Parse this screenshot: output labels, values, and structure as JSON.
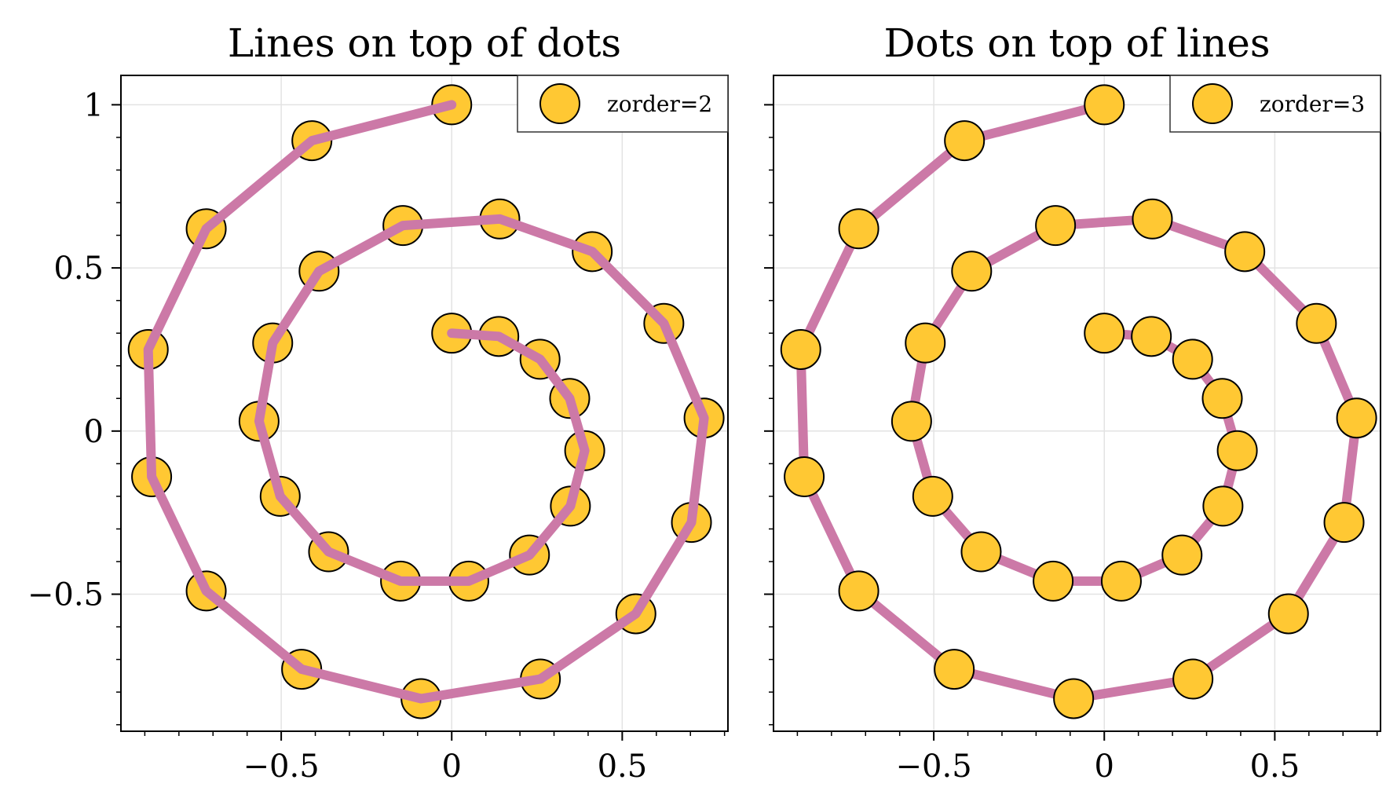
{
  "chart_data": [
    {
      "type": "scatter",
      "title": "Lines on top of dots",
      "xlim": [
        -0.97,
        0.81
      ],
      "ylim": [
        -0.92,
        1.09
      ],
      "xticks": [
        -0.5,
        0,
        0.5
      ],
      "xtick_labels": [
        "−0.5",
        "0",
        "0.5"
      ],
      "yticks": [
        -0.5,
        0,
        0.5,
        1
      ],
      "ytick_labels": [
        "−0.5",
        "0",
        "0.5",
        "1"
      ],
      "grid": true,
      "legend": {
        "position": "top-right",
        "entries": [
          "zorder=2"
        ]
      },
      "draw_order": "dots-below-line",
      "series": [
        {
          "name": "zorder=2",
          "marker_color": "#ffc833",
          "marker_edge": "#000000",
          "line_color": "#cc79a7",
          "x": [
            0.0,
            0.138,
            0.259,
            0.346,
            0.39,
            0.348,
            0.228,
            0.05,
            -0.15,
            -0.361,
            -0.503,
            -0.565,
            -0.525,
            -0.389,
            -0.143,
            0.141,
            0.412,
            0.622,
            0.74,
            0.703,
            0.54,
            0.26,
            -0.09,
            -0.44,
            -0.72,
            -0.88,
            -0.89,
            -0.72,
            -0.41,
            0.0
          ],
          "y": [
            0.3,
            0.29,
            0.22,
            0.1,
            -0.06,
            -0.23,
            -0.38,
            -0.46,
            -0.46,
            -0.37,
            -0.2,
            0.03,
            0.27,
            0.49,
            0.63,
            0.65,
            0.55,
            0.33,
            0.04,
            -0.28,
            -0.56,
            -0.76,
            -0.82,
            -0.73,
            -0.49,
            -0.14,
            0.25,
            0.62,
            0.89,
            1.0
          ]
        }
      ]
    },
    {
      "type": "scatter",
      "title": "Dots on top of lines",
      "xlim": [
        -0.97,
        0.81
      ],
      "ylim": [
        -0.92,
        1.09
      ],
      "xticks": [
        -0.5,
        0,
        0.5
      ],
      "xtick_labels": [
        "−0.5",
        "0",
        "0.5"
      ],
      "yticks": [
        -0.5,
        0,
        0.5,
        1
      ],
      "ytick_labels": [
        "",
        "",
        "",
        ""
      ],
      "grid": true,
      "legend": {
        "position": "top-right",
        "entries": [
          "zorder=3"
        ]
      },
      "draw_order": "dots-above-line",
      "series": [
        {
          "name": "zorder=3",
          "marker_color": "#ffc833",
          "marker_edge": "#000000",
          "line_color": "#cc79a7",
          "x": [
            0.0,
            0.138,
            0.259,
            0.346,
            0.39,
            0.348,
            0.228,
            0.05,
            -0.15,
            -0.361,
            -0.503,
            -0.565,
            -0.525,
            -0.389,
            -0.143,
            0.141,
            0.412,
            0.622,
            0.74,
            0.703,
            0.54,
            0.26,
            -0.09,
            -0.44,
            -0.72,
            -0.88,
            -0.89,
            -0.72,
            -0.41,
            0.0
          ],
          "y": [
            0.3,
            0.29,
            0.22,
            0.1,
            -0.06,
            -0.23,
            -0.38,
            -0.46,
            -0.46,
            -0.37,
            -0.2,
            0.03,
            0.27,
            0.49,
            0.63,
            0.65,
            0.55,
            0.33,
            0.04,
            -0.28,
            -0.56,
            -0.76,
            -0.82,
            -0.73,
            -0.49,
            -0.14,
            0.25,
            0.62,
            0.89,
            1.0
          ]
        }
      ]
    }
  ]
}
